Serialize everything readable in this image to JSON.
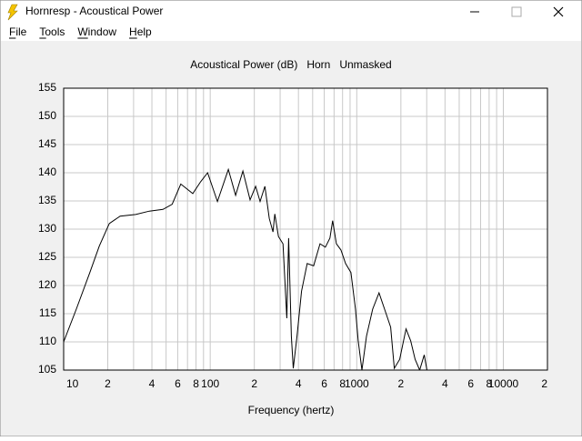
{
  "window": {
    "title": "Hornresp - Acoustical Power",
    "menu": [
      "File",
      "Tools",
      "Window",
      "Help"
    ]
  },
  "chart_data": {
    "type": "line",
    "title": "Acoustical Power (dB)   Horn   Unmasked",
    "x_label": "Frequency (hertz)",
    "log_x": true,
    "grid": true,
    "xlim": [
      10,
      20000
    ],
    "ylim": [
      105,
      155
    ],
    "yticks": [
      105,
      110,
      115,
      120,
      125,
      130,
      135,
      140,
      145,
      150,
      155
    ],
    "xticks": [
      10,
      {
        "value": 20,
        "label": "2"
      },
      {
        "value": 40,
        "label": "4"
      },
      {
        "value": 60,
        "label": "6"
      },
      {
        "value": 80,
        "label": "8"
      },
      100,
      {
        "value": 200,
        "label": "2"
      },
      {
        "value": 400,
        "label": "4"
      },
      {
        "value": 600,
        "label": "6"
      },
      {
        "value": 800,
        "label": "8"
      },
      1000,
      {
        "value": 2000,
        "label": "2"
      },
      {
        "value": 4000,
        "label": "4"
      },
      {
        "value": 6000,
        "label": "6"
      },
      {
        "value": 8000,
        "label": "8"
      },
      10000,
      {
        "value": 20000,
        "label": "2"
      }
    ],
    "xminor_ticks": [
      30,
      50,
      70,
      90,
      300,
      500,
      700,
      900,
      3000,
      5000,
      7000,
      9000
    ],
    "series": [
      {
        "color": "#000000",
        "x": [
          10,
          12.2,
          15.1,
          17.5,
          20.5,
          24.3,
          31,
          38.4,
          47.6,
          55,
          63,
          76,
          86,
          96,
          112,
          133,
          149,
          167,
          187,
          204,
          219,
          236,
          253,
          268,
          276,
          292,
          314,
          333,
          343,
          358,
          369,
          391,
          420,
          459,
          508,
          561,
          611,
          656,
          685,
          726,
          780,
          838,
          912,
          980,
          1023,
          1085,
          1165,
          1284,
          1418,
          1587,
          1704,
          1804,
          1963,
          2170,
          2332,
          2503,
          2687,
          2886,
          3012
        ],
        "values": [
          110,
          115.8,
          122.3,
          127,
          131,
          132.3,
          132.6,
          133.2,
          133.5,
          134.4,
          138,
          136.3,
          138.4,
          140,
          134.9,
          140.6,
          136,
          140.3,
          135.2,
          137.6,
          134.9,
          137.6,
          131.9,
          129.5,
          132.7,
          128.7,
          127.4,
          114.2,
          128.4,
          111,
          105.3,
          111,
          119,
          123.9,
          123.5,
          127.4,
          126.8,
          128.4,
          131.5,
          127.4,
          126.3,
          123.9,
          122.3,
          115.8,
          110.2,
          105,
          111,
          115.8,
          118.7,
          115,
          112.6,
          105.3,
          106.9,
          112.3,
          110.2,
          106.9,
          105,
          107.7,
          105
        ]
      }
    ]
  }
}
